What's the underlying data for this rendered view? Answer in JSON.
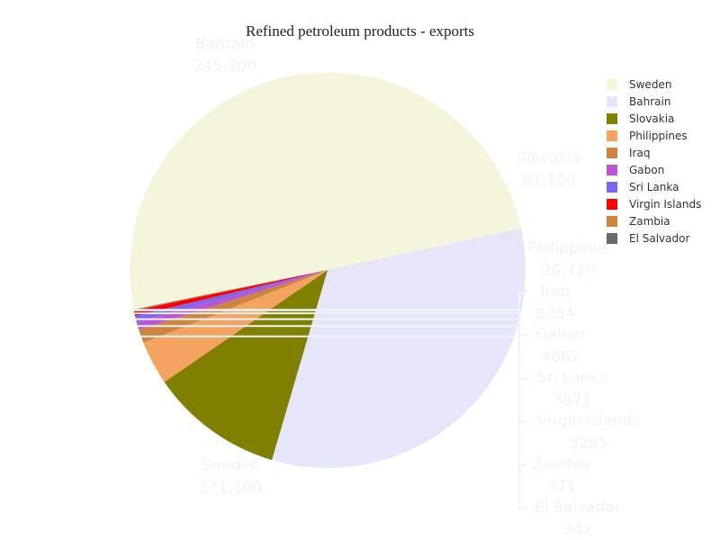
{
  "chart_data": {
    "type": "pie",
    "title": "Refined petroleum products - exports",
    "slices": [
      {
        "label": "Sweden",
        "value": 371100,
        "display": "371,100",
        "color": "#F5F5DC"
      },
      {
        "label": "Bahrain",
        "value": 245300,
        "display": "245,300",
        "color": "#E6E6FA"
      },
      {
        "label": "Slovakia",
        "value": 81100,
        "display": "81,100",
        "color": "#808000"
      },
      {
        "label": "Philippines",
        "value": 26710,
        "display": "26,710",
        "color": "#F4A460"
      },
      {
        "label": "Iraq",
        "value": 8284,
        "display": "8284",
        "color": "#CD853F"
      },
      {
        "label": "Gabon",
        "value": 4662,
        "display": "4662",
        "color": "#BA55D3"
      },
      {
        "label": "Sri Lanka",
        "value": 3871,
        "display": "3871",
        "color": "#7B68EE"
      },
      {
        "label": "Virgin Islands",
        "value": 3285,
        "display": "3285",
        "color": "#FF0000"
      },
      {
        "label": "Zambia",
        "value": 371,
        "display": "371",
        "color": "#CD853F"
      },
      {
        "label": "El Salvador",
        "value": 347,
        "display": "347",
        "color": "#696969"
      }
    ],
    "legend_position": "top-right"
  }
}
